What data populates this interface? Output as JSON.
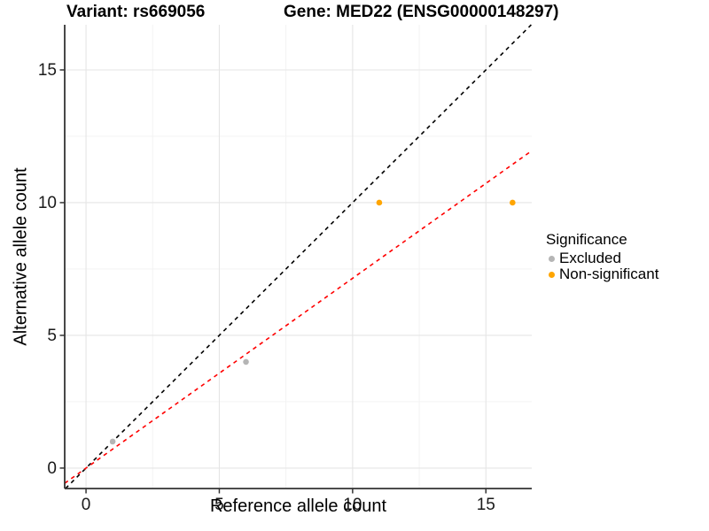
{
  "header": {
    "variant_title": "Variant: rs669056",
    "gene_title": "Gene: MED22 (ENSG00000148297)"
  },
  "chart_data": {
    "type": "scatter",
    "title": "Variant: rs669056  Gene: MED22 (ENSG00000148297)",
    "xlabel": "Reference allele count",
    "ylabel": "Alternative allele count",
    "xlim": [
      -0.8,
      16.72
    ],
    "ylim": [
      -0.77,
      16.7
    ],
    "x_ticks": [
      0,
      5,
      10,
      15
    ],
    "y_ticks": [
      0,
      5,
      10,
      15
    ],
    "x_minor_ticks": [
      2.5,
      7.5,
      12.5
    ],
    "y_minor_ticks": [
      2.5,
      7.5,
      12.5
    ],
    "grid": true,
    "series": [
      {
        "name": "Excluded",
        "color": "#b5b5b5",
        "points": [
          [
            1,
            1
          ],
          [
            6,
            4
          ]
        ]
      },
      {
        "name": "Non-significant",
        "color": "#FFA500",
        "points": [
          [
            11,
            10
          ],
          [
            16,
            10
          ]
        ]
      }
    ],
    "lines": [
      {
        "name": "identity-line",
        "color": "#000000",
        "slope": 1,
        "intercept": 0,
        "dash": "4.5,4.5"
      },
      {
        "name": "allelic-ratio-line",
        "color": "#ff0000",
        "slope": 0.715,
        "intercept": 0,
        "dash": "4.5,4.5"
      }
    ],
    "legend": {
      "title": "Significance",
      "position": "right",
      "items": [
        {
          "label": "Excluded",
          "color": "#b5b5b5"
        },
        {
          "label": "Non-significant",
          "color": "#FFA500"
        }
      ]
    }
  },
  "colors": {
    "background": "#ffffff",
    "axis_line": "#333333",
    "major_grid": "#e5e5e5",
    "minor_grid": "#f2f2f2",
    "tick_label": "#1a1a1a"
  }
}
